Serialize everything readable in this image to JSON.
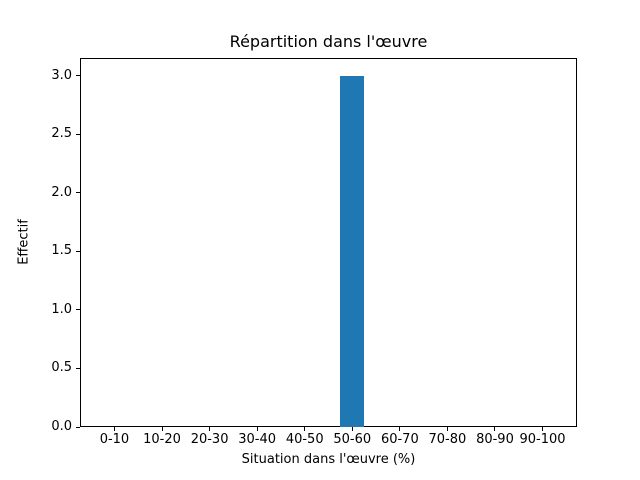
{
  "chart_data": {
    "type": "bar",
    "title": "Répartition dans l'œuvre",
    "xlabel": "Situation dans l'œuvre (%)",
    "ylabel": "Effectif",
    "categories": [
      "0-10",
      "10-20",
      "20-30",
      "30-40",
      "40-50",
      "50-60",
      "60-70",
      "70-80",
      "80-90",
      "90-100"
    ],
    "values": [
      0,
      0,
      0,
      0,
      0,
      3,
      0,
      0,
      0,
      0
    ],
    "yticks": [
      0.0,
      0.5,
      1.0,
      1.5,
      2.0,
      2.5,
      3.0
    ],
    "ylim": [
      0,
      3.15
    ],
    "grid": false,
    "legend": "none",
    "bar_color": "#1f77b4",
    "bar_width_fraction": 0.5,
    "axis_color": "#000000",
    "background_color": "#ffffff"
  }
}
